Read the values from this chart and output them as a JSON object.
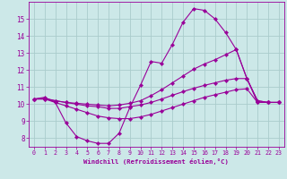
{
  "xlabel": "Windchill (Refroidissement éolien,°C)",
  "background_color": "#cce8e8",
  "grid_color": "#aacccc",
  "line_color": "#990099",
  "xlim": [
    -0.5,
    23.5
  ],
  "ylim": [
    7.5,
    16.0
  ],
  "xticks": [
    0,
    1,
    2,
    3,
    4,
    5,
    6,
    7,
    8,
    9,
    10,
    11,
    12,
    13,
    14,
    15,
    16,
    17,
    18,
    19,
    20,
    21,
    22,
    23
  ],
  "yticks": [
    8,
    9,
    10,
    11,
    12,
    13,
    14,
    15
  ],
  "curve1_x": [
    0,
    1,
    2,
    3,
    4,
    5,
    6,
    7,
    8,
    9,
    10,
    11,
    12,
    13,
    14,
    15,
    16,
    17,
    18,
    19,
    20,
    21,
    22,
    23
  ],
  "curve1_y": [
    10.3,
    10.4,
    10.1,
    8.9,
    8.1,
    7.85,
    7.7,
    7.7,
    8.3,
    9.8,
    11.1,
    12.5,
    12.4,
    13.5,
    14.8,
    15.6,
    15.5,
    15.0,
    14.2,
    13.2,
    11.5,
    10.1,
    10.1,
    10.1
  ],
  "curve2_x": [
    0,
    1,
    2,
    3,
    4,
    5,
    6,
    7,
    8,
    9,
    10,
    11,
    12,
    13,
    14,
    15,
    16,
    17,
    18,
    19,
    20,
    21,
    22,
    23
  ],
  "curve2_y": [
    10.3,
    10.35,
    10.2,
    10.1,
    10.05,
    10.0,
    9.95,
    9.9,
    9.95,
    10.05,
    10.2,
    10.5,
    10.85,
    11.25,
    11.65,
    12.05,
    12.35,
    12.6,
    12.9,
    13.2,
    11.5,
    10.2,
    10.1,
    10.1
  ],
  "curve3_x": [
    0,
    1,
    2,
    3,
    4,
    5,
    6,
    7,
    8,
    9,
    10,
    11,
    12,
    13,
    14,
    15,
    16,
    17,
    18,
    19,
    20,
    21,
    22,
    23
  ],
  "curve3_y": [
    10.3,
    10.3,
    10.2,
    10.1,
    10.0,
    9.9,
    9.85,
    9.75,
    9.75,
    9.85,
    9.95,
    10.1,
    10.3,
    10.52,
    10.73,
    10.93,
    11.1,
    11.25,
    11.4,
    11.5,
    11.5,
    10.2,
    10.1,
    10.1
  ],
  "curve4_x": [
    0,
    1,
    2,
    3,
    4,
    5,
    6,
    7,
    8,
    9,
    10,
    11,
    12,
    13,
    14,
    15,
    16,
    17,
    18,
    19,
    20,
    21,
    22,
    23
  ],
  "curve4_y": [
    10.3,
    10.3,
    10.1,
    9.9,
    9.7,
    9.5,
    9.3,
    9.2,
    9.15,
    9.15,
    9.25,
    9.4,
    9.6,
    9.8,
    10.0,
    10.2,
    10.4,
    10.55,
    10.7,
    10.85,
    10.9,
    10.1,
    10.1,
    10.1
  ]
}
